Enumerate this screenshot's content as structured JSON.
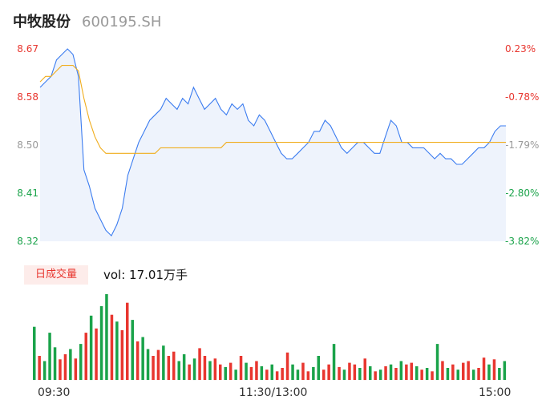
{
  "header": {
    "name": "中牧股份",
    "code": "600195.SH"
  },
  "colors": {
    "up": "#e8362f",
    "down": "#1aa34a",
    "neutral": "#999999",
    "price_line": "#3b7cf0",
    "avg_line": "#f0ad1d",
    "area_fill": "#eef3fc"
  },
  "price_axis": [
    {
      "label": "8.67",
      "value": 8.67,
      "color": "#e8362f"
    },
    {
      "label": "8.58",
      "value": 8.58,
      "color": "#e8362f"
    },
    {
      "label": "8.50",
      "value": 8.5,
      "color": "#999999"
    },
    {
      "label": "8.41",
      "value": 8.41,
      "color": "#1aa34a"
    },
    {
      "label": "8.32",
      "value": 8.32,
      "color": "#1aa34a"
    }
  ],
  "pct_axis": [
    {
      "label": "0.23%",
      "color": "#e8362f"
    },
    {
      "label": "-0.78%",
      "color": "#e8362f"
    },
    {
      "label": "-1.79%",
      "color": "#999999"
    },
    {
      "label": "-2.80%",
      "color": "#1aa34a"
    },
    {
      "label": "-3.82%",
      "color": "#1aa34a"
    }
  ],
  "volume": {
    "badge": "日成交量",
    "text": "vol: 17.01万手"
  },
  "time_labels": [
    "09:30",
    "11:30/13:00",
    "15:00"
  ],
  "chart_data": {
    "type": "line",
    "ylim": [
      8.32,
      8.67
    ],
    "series": [
      {
        "key": "price",
        "values": [
          8.6,
          8.61,
          8.62,
          8.65,
          8.66,
          8.67,
          8.66,
          8.62,
          8.45,
          8.42,
          8.38,
          8.36,
          8.34,
          8.33,
          8.35,
          8.38,
          8.44,
          8.47,
          8.5,
          8.52,
          8.54,
          8.55,
          8.56,
          8.58,
          8.57,
          8.56,
          8.58,
          8.57,
          8.6,
          8.58,
          8.56,
          8.57,
          8.58,
          8.56,
          8.55,
          8.57,
          8.56,
          8.57,
          8.54,
          8.53,
          8.55,
          8.54,
          8.52,
          8.5,
          8.48,
          8.47,
          8.47,
          8.48,
          8.49,
          8.5,
          8.52,
          8.52,
          8.54,
          8.53,
          8.51,
          8.49,
          8.48,
          8.49,
          8.5,
          8.5,
          8.49,
          8.48,
          8.48,
          8.51,
          8.54,
          8.53,
          8.5,
          8.5,
          8.49,
          8.49,
          8.49,
          8.48,
          8.47,
          8.48,
          8.47,
          8.47,
          8.46,
          8.46,
          8.47,
          8.48,
          8.49,
          8.49,
          8.5,
          8.52,
          8.53,
          8.53
        ]
      },
      {
        "key": "avg",
        "values": [
          8.61,
          8.62,
          8.62,
          8.63,
          8.64,
          8.64,
          8.64,
          8.63,
          8.58,
          8.54,
          8.51,
          8.49,
          8.48,
          8.48,
          8.48,
          8.48,
          8.48,
          8.48,
          8.48,
          8.48,
          8.48,
          8.48,
          8.49,
          8.49,
          8.49,
          8.49,
          8.49,
          8.49,
          8.49,
          8.49,
          8.49,
          8.49,
          8.49,
          8.49,
          8.5,
          8.5,
          8.5,
          8.5,
          8.5,
          8.5,
          8.5,
          8.5,
          8.5,
          8.5,
          8.5,
          8.5,
          8.5,
          8.5,
          8.5,
          8.5,
          8.5,
          8.5,
          8.5,
          8.5,
          8.5,
          8.5,
          8.5,
          8.5,
          8.5,
          8.5,
          8.5,
          8.5,
          8.5,
          8.5,
          8.5,
          8.5,
          8.5,
          8.5,
          8.5,
          8.5,
          8.5,
          8.5,
          8.5,
          8.5,
          8.5,
          8.5,
          8.5,
          8.5,
          8.5,
          8.5,
          8.5,
          8.5,
          8.5,
          8.5,
          8.5,
          8.5
        ]
      }
    ],
    "volume_bars": [
      {
        "v": 0.62,
        "d": "down"
      },
      {
        "v": 0.28,
        "d": "up"
      },
      {
        "v": 0.22,
        "d": "down"
      },
      {
        "v": 0.55,
        "d": "down"
      },
      {
        "v": 0.38,
        "d": "down"
      },
      {
        "v": 0.24,
        "d": "up"
      },
      {
        "v": 0.3,
        "d": "up"
      },
      {
        "v": 0.36,
        "d": "down"
      },
      {
        "v": 0.25,
        "d": "up"
      },
      {
        "v": 0.42,
        "d": "down"
      },
      {
        "v": 0.55,
        "d": "up"
      },
      {
        "v": 0.75,
        "d": "down"
      },
      {
        "v": 0.6,
        "d": "up"
      },
      {
        "v": 0.86,
        "d": "down"
      },
      {
        "v": 1.0,
        "d": "down"
      },
      {
        "v": 0.76,
        "d": "up"
      },
      {
        "v": 0.68,
        "d": "down"
      },
      {
        "v": 0.58,
        "d": "up"
      },
      {
        "v": 0.9,
        "d": "up"
      },
      {
        "v": 0.7,
        "d": "down"
      },
      {
        "v": 0.45,
        "d": "up"
      },
      {
        "v": 0.5,
        "d": "down"
      },
      {
        "v": 0.36,
        "d": "down"
      },
      {
        "v": 0.28,
        "d": "up"
      },
      {
        "v": 0.35,
        "d": "up"
      },
      {
        "v": 0.4,
        "d": "down"
      },
      {
        "v": 0.28,
        "d": "up"
      },
      {
        "v": 0.33,
        "d": "up"
      },
      {
        "v": 0.22,
        "d": "down"
      },
      {
        "v": 0.3,
        "d": "down"
      },
      {
        "v": 0.18,
        "d": "up"
      },
      {
        "v": 0.25,
        "d": "down"
      },
      {
        "v": 0.37,
        "d": "up"
      },
      {
        "v": 0.28,
        "d": "up"
      },
      {
        "v": 0.22,
        "d": "down"
      },
      {
        "v": 0.25,
        "d": "up"
      },
      {
        "v": 0.18,
        "d": "up"
      },
      {
        "v": 0.15,
        "d": "down"
      },
      {
        "v": 0.2,
        "d": "up"
      },
      {
        "v": 0.12,
        "d": "down"
      },
      {
        "v": 0.28,
        "d": "up"
      },
      {
        "v": 0.2,
        "d": "down"
      },
      {
        "v": 0.15,
        "d": "up"
      },
      {
        "v": 0.22,
        "d": "up"
      },
      {
        "v": 0.16,
        "d": "down"
      },
      {
        "v": 0.12,
        "d": "up"
      },
      {
        "v": 0.18,
        "d": "down"
      },
      {
        "v": 0.1,
        "d": "up"
      },
      {
        "v": 0.14,
        "d": "up"
      },
      {
        "v": 0.32,
        "d": "up"
      },
      {
        "v": 0.18,
        "d": "down"
      },
      {
        "v": 0.12,
        "d": "down"
      },
      {
        "v": 0.2,
        "d": "up"
      },
      {
        "v": 0.1,
        "d": "up"
      },
      {
        "v": 0.15,
        "d": "down"
      },
      {
        "v": 0.28,
        "d": "down"
      },
      {
        "v": 0.12,
        "d": "up"
      },
      {
        "v": 0.18,
        "d": "up"
      },
      {
        "v": 0.42,
        "d": "down"
      },
      {
        "v": 0.15,
        "d": "up"
      },
      {
        "v": 0.12,
        "d": "down"
      },
      {
        "v": 0.2,
        "d": "up"
      },
      {
        "v": 0.18,
        "d": "up"
      },
      {
        "v": 0.14,
        "d": "down"
      },
      {
        "v": 0.25,
        "d": "up"
      },
      {
        "v": 0.16,
        "d": "down"
      },
      {
        "v": 0.1,
        "d": "up"
      },
      {
        "v": 0.12,
        "d": "down"
      },
      {
        "v": 0.16,
        "d": "up"
      },
      {
        "v": 0.18,
        "d": "down"
      },
      {
        "v": 0.14,
        "d": "up"
      },
      {
        "v": 0.22,
        "d": "down"
      },
      {
        "v": 0.18,
        "d": "up"
      },
      {
        "v": 0.2,
        "d": "up"
      },
      {
        "v": 0.16,
        "d": "down"
      },
      {
        "v": 0.12,
        "d": "up"
      },
      {
        "v": 0.14,
        "d": "down"
      },
      {
        "v": 0.1,
        "d": "up"
      },
      {
        "v": 0.42,
        "d": "down"
      },
      {
        "v": 0.22,
        "d": "up"
      },
      {
        "v": 0.14,
        "d": "down"
      },
      {
        "v": 0.18,
        "d": "up"
      },
      {
        "v": 0.12,
        "d": "down"
      },
      {
        "v": 0.2,
        "d": "up"
      },
      {
        "v": 0.22,
        "d": "up"
      },
      {
        "v": 0.12,
        "d": "down"
      },
      {
        "v": 0.14,
        "d": "up"
      },
      {
        "v": 0.26,
        "d": "up"
      },
      {
        "v": 0.18,
        "d": "down"
      },
      {
        "v": 0.24,
        "d": "up"
      },
      {
        "v": 0.14,
        "d": "down"
      },
      {
        "v": 0.22,
        "d": "down"
      }
    ]
  }
}
